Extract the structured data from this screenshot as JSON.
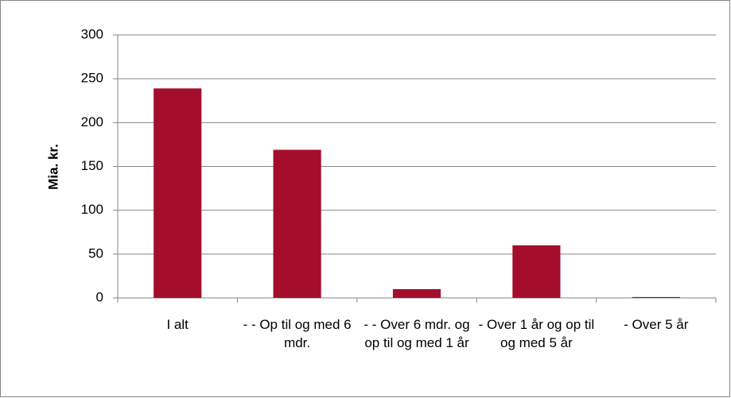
{
  "chart_data": {
    "type": "bar",
    "y_label": "Mia. kr.",
    "categories": [
      "I alt",
      "- - Op til og med 6 mdr.",
      "- - Over 6 mdr. og op til og med 1 år",
      "- Over 1 år og op til og med 5 år",
      "- Over 5 år"
    ],
    "values": [
      239,
      169,
      10,
      60,
      1
    ],
    "color": "#a50d2d",
    "ylim": [
      0,
      300
    ],
    "yticks": [
      0,
      50,
      100,
      150,
      200,
      250,
      300
    ],
    "grid": true
  }
}
